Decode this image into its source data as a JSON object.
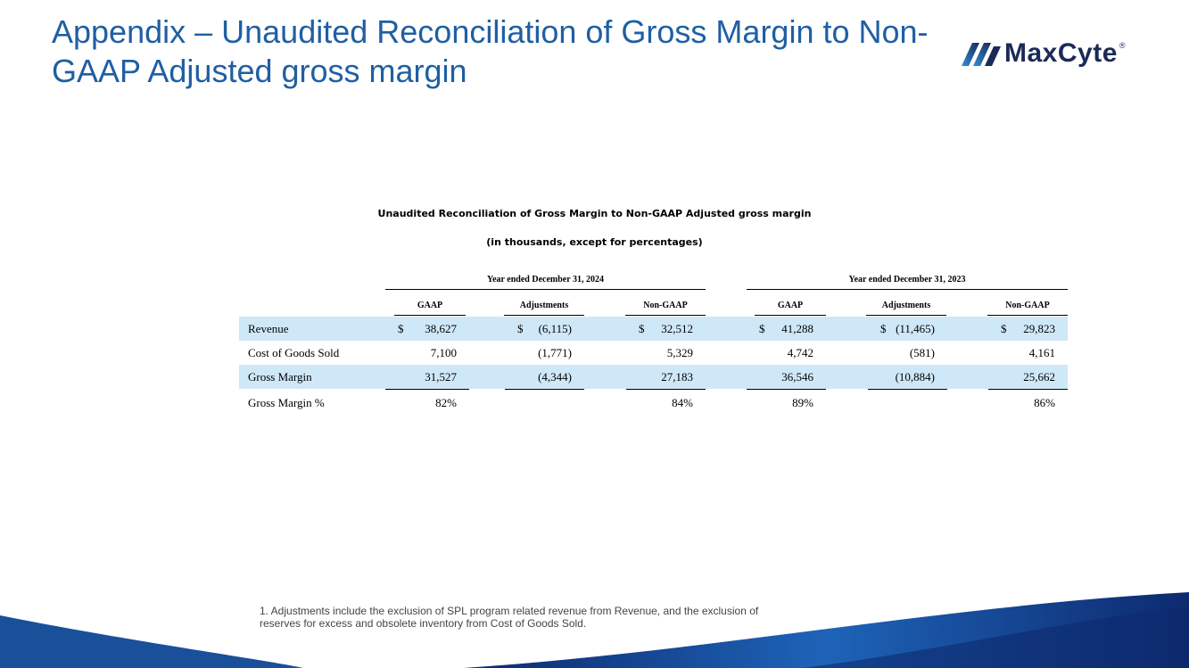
{
  "slide": {
    "title_line1": "Appendix – Unaudited Reconciliation of Gross Margin to Non-",
    "title_line2": "GAAP Adjusted gross margin"
  },
  "logo": {
    "text": "MaxCyte",
    "reg_mark": "®"
  },
  "colors": {
    "title_blue": "#1f5fa3",
    "logo_navy": "#1b2b57",
    "row_shade": "#cfe8f8",
    "wave_dark": "#0d2a6e",
    "wave_light": "#1e63b8"
  },
  "table": {
    "title": "Unaudited Reconciliation of Gross Margin to Non-GAAP Adjusted gross margin",
    "subtitle": "(in thousands, except for percentages)",
    "periods": [
      "Year ended December 31, 2024",
      "Year ended December 31, 2023"
    ],
    "columns": [
      "GAAP",
      "Adjustments",
      "Non-GAAP",
      "GAAP",
      "Adjustments",
      "Non-GAAP"
    ],
    "rows": [
      {
        "label": "Revenue",
        "cells": [
          {
            "cur": "$",
            "val": "38,627"
          },
          {
            "cur": "$",
            "val": "(6,115)"
          },
          {
            "cur": "$",
            "val": "32,512"
          },
          {
            "cur": "$",
            "val": "41,288"
          },
          {
            "cur": "$",
            "val": "(11,465)"
          },
          {
            "cur": "$",
            "val": "29,823"
          }
        ]
      },
      {
        "label": "Cost of Goods Sold",
        "cells": [
          {
            "cur": "",
            "val": "7,100"
          },
          {
            "cur": "",
            "val": "(1,771)"
          },
          {
            "cur": "",
            "val": "5,329"
          },
          {
            "cur": "",
            "val": "4,742"
          },
          {
            "cur": "",
            "val": "(581)"
          },
          {
            "cur": "",
            "val": "4,161"
          }
        ]
      },
      {
        "label": "Gross Margin",
        "cells": [
          {
            "cur": "",
            "val": "31,527"
          },
          {
            "cur": "",
            "val": "(4,344)"
          },
          {
            "cur": "",
            "val": "27,183"
          },
          {
            "cur": "",
            "val": "36,546"
          },
          {
            "cur": "",
            "val": "(10,884)"
          },
          {
            "cur": "",
            "val": "25,662"
          }
        ]
      },
      {
        "label": "Gross Margin %",
        "cells": [
          {
            "cur": "",
            "val": "82%"
          },
          {
            "cur": "",
            "val": ""
          },
          {
            "cur": "",
            "val": "84%"
          },
          {
            "cur": "",
            "val": "89%"
          },
          {
            "cur": "",
            "val": ""
          },
          {
            "cur": "",
            "val": "86%"
          }
        ]
      }
    ]
  },
  "footnote": "1. Adjustments include the exclusion of SPL program related revenue from Revenue, and the exclusion of reserves for excess and obsolete inventory from Cost of Goods Sold."
}
